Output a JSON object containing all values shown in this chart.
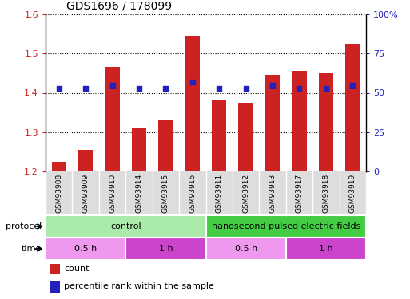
{
  "title": "GDS1696 / 178099",
  "samples": [
    "GSM93908",
    "GSM93909",
    "GSM93910",
    "GSM93914",
    "GSM93915",
    "GSM93916",
    "GSM93911",
    "GSM93912",
    "GSM93913",
    "GSM93917",
    "GSM93918",
    "GSM93919"
  ],
  "count_values": [
    1.225,
    1.255,
    1.465,
    1.31,
    1.33,
    1.545,
    1.38,
    1.375,
    1.445,
    1.455,
    1.45,
    1.525
  ],
  "percentile_values": [
    53,
    53,
    55,
    53,
    53,
    57,
    53,
    53,
    55,
    53,
    53,
    55
  ],
  "ylim_left": [
    1.2,
    1.6
  ],
  "ylim_right": [
    0,
    100
  ],
  "yticks_left": [
    1.2,
    1.3,
    1.4,
    1.5,
    1.6
  ],
  "yticks_right": [
    0,
    25,
    50,
    75,
    100
  ],
  "ytick_labels_right": [
    "0",
    "25",
    "50",
    "75",
    "100%"
  ],
  "bar_color": "#cc2222",
  "dot_color": "#2222bb",
  "bar_bottom": 1.2,
  "protocol_groups": [
    {
      "label": "control",
      "start": 0,
      "end": 6,
      "color": "#aaeaaa"
    },
    {
      "label": "nanosecond pulsed electric fields",
      "start": 6,
      "end": 12,
      "color": "#44cc44"
    }
  ],
  "time_groups": [
    {
      "label": "0.5 h",
      "start": 0,
      "end": 3,
      "color": "#ee99ee"
    },
    {
      "label": "1 h",
      "start": 3,
      "end": 6,
      "color": "#cc44cc"
    },
    {
      "label": "0.5 h",
      "start": 6,
      "end": 9,
      "color": "#ee99ee"
    },
    {
      "label": "1 h",
      "start": 9,
      "end": 12,
      "color": "#cc44cc"
    }
  ],
  "legend_count_color": "#cc2222",
  "legend_pct_color": "#2222bb",
  "bg_color": "#ffffff",
  "title_fontsize": 10,
  "axis_label_color_left": "#cc2222",
  "axis_label_color_right": "#2222bb"
}
